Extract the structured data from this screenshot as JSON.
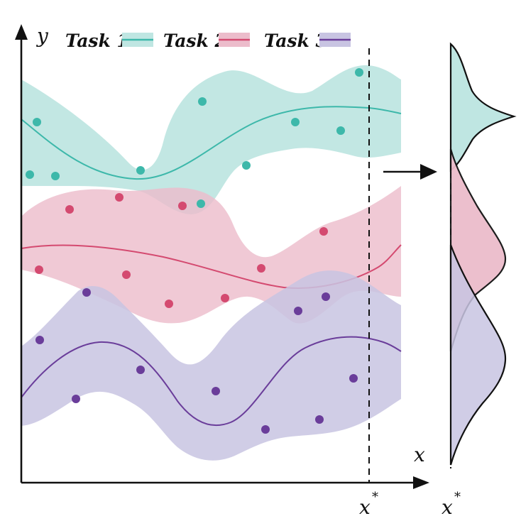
{
  "axes": {
    "y_label": "y",
    "x_label": "x",
    "x_star": "x",
    "x_star_sup": "*",
    "x_star_right": "x",
    "x_star_right_sup": "*"
  },
  "legend": [
    {
      "label": "Task 1",
      "color": "#3db8aa",
      "fill": "#bfe6e2"
    },
    {
      "label": "Task 2",
      "color": "#d44a70",
      "fill": "#ecbccb"
    },
    {
      "label": "Task 3",
      "color": "#6a3d9a",
      "fill": "#c8c4e2"
    }
  ],
  "colors": {
    "task1_line": "#3db8aa",
    "task1_band": "#bfe6e2",
    "task2_line": "#d44a70",
    "task2_band": "#ecbccb",
    "task3_line": "#6a3d9a",
    "task3_band": "#c8c4e2",
    "axis": "#111111"
  },
  "icons": {
    "arrow": "right-arrow-icon"
  }
}
